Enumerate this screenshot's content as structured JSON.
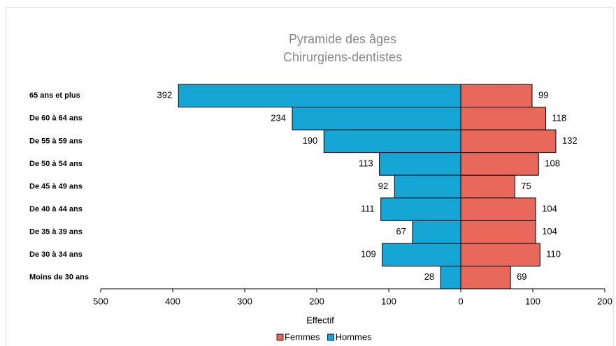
{
  "chart_data": {
    "type": "pyramid",
    "title": [
      "Pyramide des âges",
      "Chirurgiens-dentistes"
    ],
    "categories": [
      "65 ans et plus",
      "De 60 à 64 ans",
      "De 55 à 59 ans",
      "De 50 à 54 ans",
      "De 45 à 49 ans",
      "De 40 à 44 ans",
      "De 35 à 39 ans",
      "De 30 à 34 ans",
      "Moins de 30 ans"
    ],
    "series": [
      {
        "name": "Femmes",
        "color": "#e8695b",
        "values": [
          99,
          118,
          132,
          108,
          75,
          104,
          104,
          110,
          69
        ]
      },
      {
        "name": "Hommes",
        "color": "#15a6d6",
        "values": [
          392,
          234,
          190,
          113,
          92,
          111,
          67,
          109,
          28
        ]
      }
    ],
    "x_label": "Effectif",
    "xlim": [
      -500,
      200
    ],
    "xticks": [
      {
        "value": -500,
        "label": "500"
      },
      {
        "value": -400,
        "label": "400"
      },
      {
        "value": -300,
        "label": "300"
      },
      {
        "value": -200,
        "label": "200"
      },
      {
        "value": -100,
        "label": "100"
      },
      0,
      100,
      200
    ]
  }
}
